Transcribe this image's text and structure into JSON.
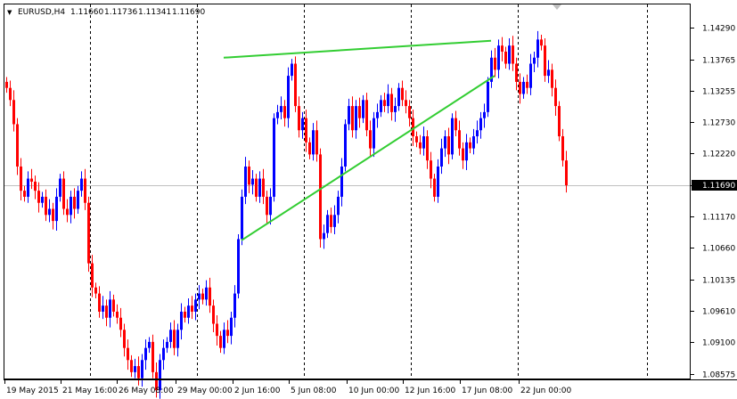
{
  "header": {
    "menu_arrow": "▼",
    "symbol": "EURUSD,H4",
    "open": "1.11660",
    "high": "1.11736",
    "low": "1.11341",
    "close": "1.11690"
  },
  "colors": {
    "bull": "#0000ff",
    "bear": "#ff0000",
    "trendline": "#32cd32",
    "grid": "#000000",
    "price_line": "#c0c0c0",
    "current_price_bg": "#000000",
    "current_price_text": "#ffffff"
  },
  "chart_data": {
    "type": "candlestick",
    "timeframe": "H4",
    "ylim": [
      1.0848,
      1.1468
    ],
    "y_ticks": [
      "1.14290",
      "1.13765",
      "1.13255",
      "1.12730",
      "1.12220",
      "1.11690",
      "1.11170",
      "1.10660",
      "1.10135",
      "1.09610",
      "1.09100",
      "1.08575"
    ],
    "current_price": "1.11690",
    "x_tick_labels": [
      "19 May 2015",
      "21 May 16:00",
      "26 May 08:00",
      "29 May 00:00",
      "2 Jun 16:00",
      "5 Jun 08:00",
      "10 Jun 00:00",
      "12 Jun 16:00",
      "17 Jun 08:00",
      "22 Jun 00:00"
    ],
    "closes": [
      1.133,
      1.131,
      1.127,
      1.12,
      1.116,
      1.115,
      1.118,
      1.1175,
      1.116,
      1.114,
      1.115,
      1.112,
      1.113,
      1.111,
      1.115,
      1.118,
      1.113,
      1.112,
      1.115,
      1.113,
      1.116,
      1.118,
      1.114,
      1.104,
      1.1,
      1.099,
      1.096,
      1.097,
      1.095,
      1.098,
      1.096,
      1.095,
      1.093,
      1.09,
      1.088,
      1.086,
      1.087,
      1.085,
      1.088,
      1.09,
      1.091,
      1.086,
      1.083,
      1.088,
      1.09,
      1.091,
      1.093,
      1.09,
      1.093,
      1.096,
      1.095,
      1.097,
      1.096,
      1.098,
      1.099,
      1.098,
      1.1,
      1.097,
      1.094,
      1.092,
      1.09,
      1.093,
      1.092,
      1.095,
      1.099,
      1.108,
      1.115,
      1.12,
      1.117,
      1.118,
      1.115,
      1.118,
      1.115,
      1.112,
      1.115,
      1.128,
      1.129,
      1.13,
      1.128,
      1.135,
      1.137,
      1.13,
      1.126,
      1.128,
      1.124,
      1.122,
      1.126,
      1.122,
      1.108,
      1.109,
      1.112,
      1.11,
      1.112,
      1.115,
      1.12,
      1.127,
      1.13,
      1.126,
      1.13,
      1.128,
      1.131,
      1.126,
      1.123,
      1.128,
      1.129,
      1.131,
      1.13,
      1.132,
      1.129,
      1.13,
      1.133,
      1.131,
      1.13,
      1.128,
      1.125,
      1.124,
      1.123,
      1.125,
      1.121,
      1.118,
      1.115,
      1.12,
      1.123,
      1.125,
      1.122,
      1.128,
      1.126,
      1.123,
      1.121,
      1.124,
      1.123,
      1.125,
      1.126,
      1.128,
      1.129,
      1.134,
      1.138,
      1.136,
      1.14,
      1.139,
      1.137,
      1.14,
      1.137,
      1.134,
      1.132,
      1.134,
      1.133,
      1.137,
      1.138,
      1.141,
      1.14,
      1.135,
      1.136,
      1.133,
      1.13,
      1.125,
      1.121,
      1.1169
    ]
  },
  "trendlines": [
    {
      "name": "upper",
      "from": [
        61,
        1.138
      ],
      "to": [
        136,
        1.1408
      ]
    },
    {
      "name": "lower",
      "from": [
        66,
        1.1078
      ],
      "to": [
        137,
        1.135
      ]
    }
  ]
}
